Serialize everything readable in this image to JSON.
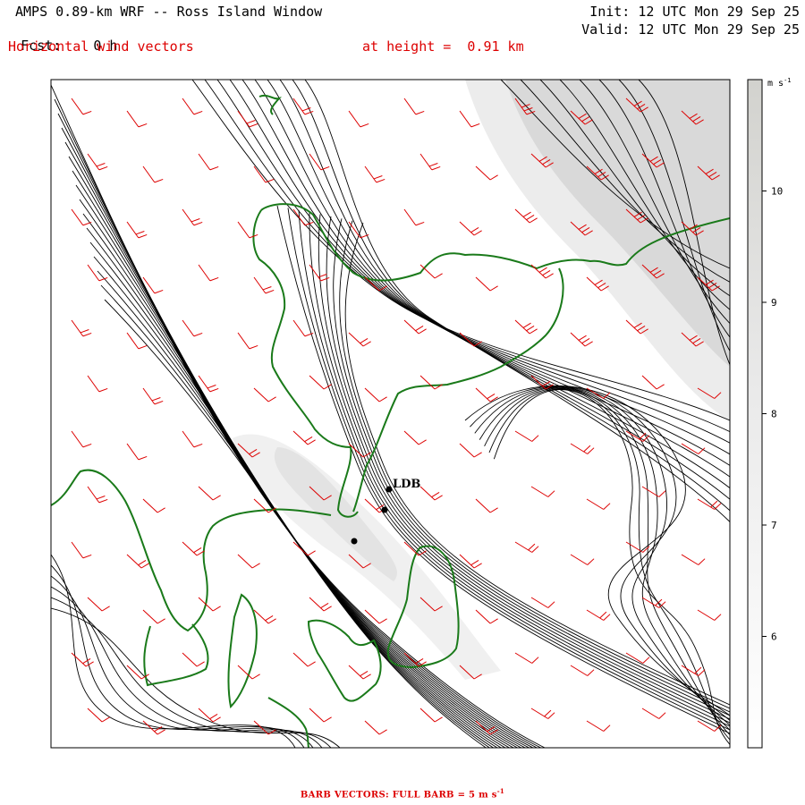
{
  "header": {
    "title": "AMPS 0.89-km WRF -- Ross Island Window",
    "fcst_label": "Fcst:",
    "fcst_value": "0 h",
    "init": "Init: 12 UTC Mon 29 Sep 25",
    "valid": "Valid: 12 UTC Mon 29 Sep 25",
    "field": "Horizontal wind vectors",
    "height": "at height =  0.91 km"
  },
  "colorbar": {
    "unit": "m s",
    "unit_exp": "-1",
    "ticks": [
      "10",
      "9",
      "8",
      "7",
      "6"
    ],
    "tick_values": [
      10,
      9,
      8,
      7,
      6
    ],
    "range": [
      5,
      11
    ]
  },
  "map": {
    "station_label": "LDB",
    "colors": {
      "streamline": "#000000",
      "coastline": "#1a7a1a",
      "barb": "#dd0000",
      "shade": "#d0d0d0"
    }
  },
  "footer": {
    "barb_note": "BARB VECTORS:  FULL BARB = 5 m s",
    "barb_note_exp": "-1"
  }
}
